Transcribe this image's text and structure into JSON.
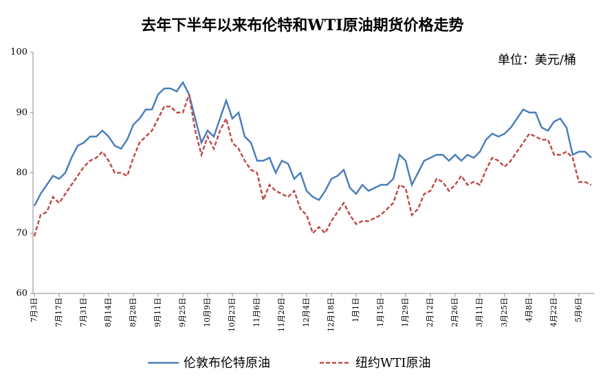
{
  "chart_data": {
    "type": "line",
    "title": "去年下半年以来布伦特和WTI原油期货价格走势",
    "annotation": "单位：美元/桶",
    "categories": [
      "7月3日",
      null,
      null,
      null,
      "7月17日",
      null,
      null,
      null,
      "7月31日",
      null,
      null,
      null,
      "8月14日",
      null,
      null,
      null,
      "8月28日",
      null,
      null,
      null,
      "9月11日",
      null,
      null,
      null,
      "9月25日",
      null,
      null,
      null,
      "10月9日",
      null,
      null,
      null,
      "10月23日",
      null,
      null,
      null,
      "11月6日",
      null,
      null,
      null,
      "11月20日",
      null,
      null,
      null,
      "12月4日",
      null,
      null,
      null,
      "12月18日",
      null,
      null,
      null,
      "1月1日",
      null,
      null,
      null,
      "1月15日",
      null,
      null,
      null,
      "1月29日",
      null,
      null,
      null,
      "2月12日",
      null,
      null,
      null,
      "2月26日",
      null,
      null,
      null,
      "3月11日",
      null,
      null,
      null,
      "3月25日",
      null,
      null,
      null,
      "4月8日",
      null,
      null,
      null,
      "4月22日",
      null,
      null,
      null,
      "5月6日",
      null,
      null
    ],
    "series": [
      {
        "name": "伦敦布伦特原油",
        "color": "#4a7ebb",
        "dash": false,
        "values": [
          74.5,
          76.5,
          78,
          79.5,
          79,
          80,
          82.5,
          84.5,
          85,
          86,
          86,
          87,
          86,
          84.5,
          84,
          85.5,
          88,
          89,
          90.5,
          90.5,
          93,
          94,
          94,
          93.5,
          95,
          93,
          89,
          85,
          87,
          86,
          89,
          92,
          89,
          90,
          86,
          85,
          82,
          82,
          82.5,
          80,
          82,
          81.5,
          79,
          80,
          77,
          76,
          75.5,
          77,
          79,
          79.5,
          80.5,
          77.5,
          76.5,
          78,
          77,
          77.5,
          78,
          78,
          79,
          83,
          82,
          78,
          80,
          82,
          82.5,
          83,
          83,
          82,
          83,
          82,
          83,
          82.5,
          83.5,
          85.5,
          86.5,
          86,
          86.5,
          87.5,
          89,
          90.5,
          90,
          90,
          87.5,
          87,
          88.5,
          89,
          87.5,
          83,
          83.5,
          83.5,
          82.5
        ]
      },
      {
        "name": "纽约WTI原油",
        "color": "#be4b48",
        "dash": true,
        "values": [
          69.5,
          73,
          73.5,
          76,
          75,
          76.5,
          78,
          79.5,
          81,
          82,
          82.5,
          83.5,
          82,
          80,
          80,
          79.5,
          82.5,
          85,
          86,
          87,
          89,
          91,
          91,
          90,
          90,
          93,
          87,
          83,
          86,
          84,
          87,
          89,
          85,
          84,
          82,
          80.5,
          80,
          75.5,
          78,
          77,
          76.5,
          76,
          77,
          74,
          73,
          70,
          71,
          70,
          72,
          73.5,
          75,
          73,
          71.5,
          72,
          72,
          72.5,
          73,
          74,
          75,
          78,
          77.5,
          73,
          74,
          76.5,
          77,
          79,
          78.5,
          77,
          78,
          79.5,
          78,
          78.5,
          78,
          80.5,
          82.5,
          82,
          81,
          82,
          83.5,
          85,
          86.5,
          86,
          85.5,
          85.5,
          83,
          83,
          83.5,
          82.5,
          78.5,
          78.5,
          78
        ]
      }
    ],
    "ylim": [
      60,
      100
    ],
    "yticks": [
      60,
      70,
      80,
      90,
      100
    ],
    "grid": false
  }
}
